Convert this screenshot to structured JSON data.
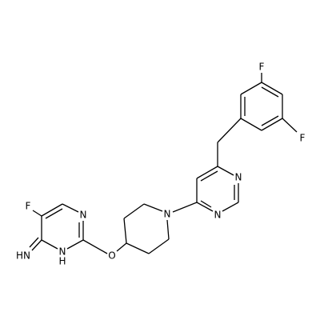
{
  "atoms": [
    {
      "label": "F"
    },
    {
      "label": "F"
    },
    {
      "label": "N"
    },
    {
      "label": "N"
    },
    {
      "label": "N"
    },
    {
      "label": "O"
    },
    {
      "label": "N"
    },
    {
      "label": "N",
      "h": "H"
    },
    {
      "label": "HN"
    },
    {
      "label": "F"
    }
  ]
}
